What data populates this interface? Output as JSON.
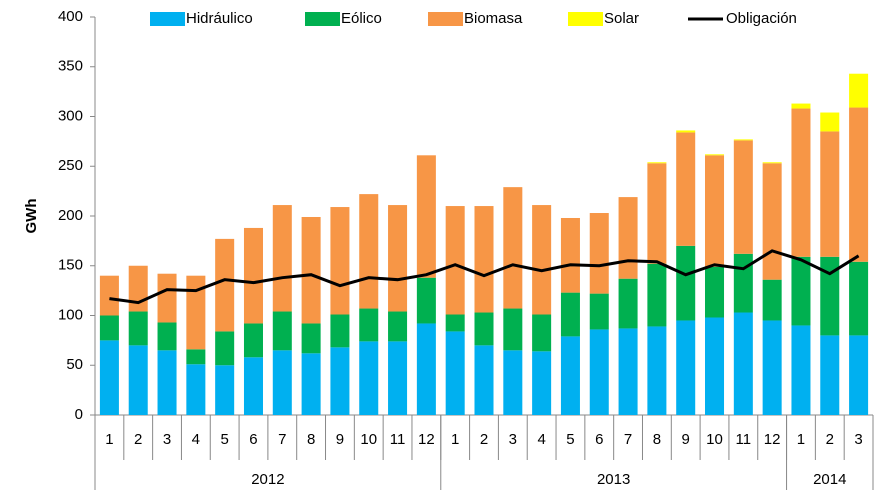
{
  "chart_data": {
    "type": "bar",
    "y_label": "GWh",
    "categories": [
      "1",
      "2",
      "3",
      "4",
      "5",
      "6",
      "7",
      "8",
      "9",
      "10",
      "11",
      "12",
      "1",
      "2",
      "3",
      "4",
      "5",
      "6",
      "7",
      "8",
      "9",
      "10",
      "11",
      "12",
      "1",
      "2",
      "3"
    ],
    "groups": [
      {
        "label": "2012",
        "span": 12
      },
      {
        "label": "2013",
        "span": 12
      },
      {
        "label": "2014",
        "span": 3
      }
    ],
    "series": [
      {
        "name": "Hidráulico",
        "color": "#00b0f0",
        "type": "bar",
        "values": [
          75,
          70,
          65,
          51,
          50,
          58,
          65,
          62,
          68,
          74,
          74,
          92,
          84,
          70,
          65,
          64,
          79,
          86,
          87,
          89,
          95,
          98,
          103,
          95,
          90,
          80,
          80
        ]
      },
      {
        "name": "Eólico",
        "color": "#00b050",
        "type": "bar",
        "values": [
          25,
          34,
          28,
          15,
          34,
          34,
          39,
          30,
          33,
          33,
          30,
          46,
          17,
          33,
          42,
          37,
          44,
          36,
          50,
          63,
          75,
          51,
          59,
          41,
          69,
          79,
          74
        ]
      },
      {
        "name": "Biomasa",
        "color": "#f79646",
        "type": "bar",
        "values": [
          40,
          46,
          49,
          74,
          93,
          96,
          107,
          107,
          108,
          115,
          107,
          123,
          109,
          107,
          122,
          110,
          75,
          81,
          82,
          101,
          114,
          112,
          114,
          117,
          149,
          126,
          155
        ]
      },
      {
        "name": "Solar",
        "color": "#ffff00",
        "type": "bar",
        "values": [
          0,
          0,
          0,
          0,
          0,
          0,
          0,
          0,
          0,
          0,
          0,
          0,
          0,
          0,
          0,
          0,
          0,
          0,
          0,
          1,
          2,
          1,
          1,
          1,
          5,
          19,
          34
        ]
      },
      {
        "name": "Obligación",
        "color": "#000000",
        "type": "line",
        "values": [
          117,
          113,
          126,
          125,
          136,
          133,
          138,
          141,
          130,
          138,
          136,
          141,
          151,
          140,
          151,
          145,
          151,
          150,
          155,
          154,
          141,
          151,
          147,
          165,
          156,
          142,
          160
        ]
      }
    ],
    "ylim": [
      0,
      400
    ],
    "yticks": [
      0,
      50,
      100,
      150,
      200,
      250,
      300,
      350,
      400
    ],
    "grid": false,
    "legend": "top"
  }
}
